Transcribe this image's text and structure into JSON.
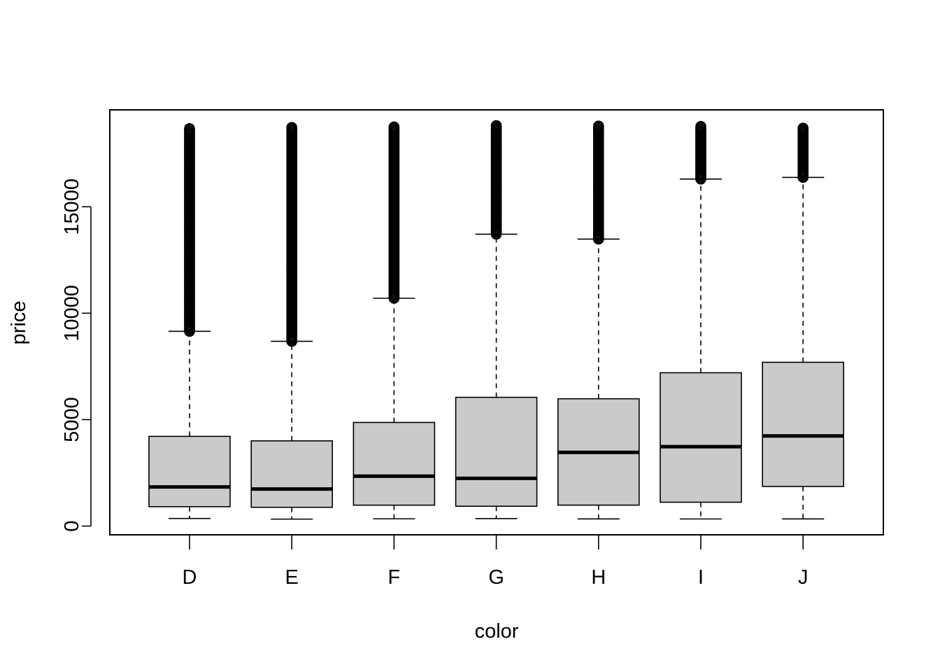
{
  "chart_data": {
    "type": "box",
    "xlabel": "color",
    "ylabel": "price",
    "categories": [
      "D",
      "E",
      "F",
      "G",
      "H",
      "I",
      "J"
    ],
    "ylim": [
      -410,
      19550
    ],
    "yticks": [
      0,
      5000,
      10000,
      15000
    ],
    "ytick_labels": [
      "0",
      "5000",
      "10000",
      "15000"
    ],
    "grid": false,
    "box_fill": "#cacaca",
    "series": [
      {
        "category": "D",
        "whisker_low": 357,
        "q1": 911,
        "median": 1838,
        "q3": 4214,
        "whisker_high": 9150,
        "outliers_min": 9150,
        "outliers_max": 18700
      },
      {
        "category": "E",
        "whisker_low": 326,
        "q1": 882,
        "median": 1739,
        "q3": 4003,
        "whisker_high": 8680,
        "outliers_min": 8680,
        "outliers_max": 18730
      },
      {
        "category": "F",
        "whisker_low": 342,
        "q1": 982,
        "median": 2345,
        "q3": 4868,
        "whisker_high": 10700,
        "outliers_min": 10700,
        "outliers_max": 18790
      },
      {
        "category": "G",
        "whisker_low": 354,
        "q1": 931,
        "median": 2242,
        "q3": 6048,
        "whisker_high": 13710,
        "outliers_min": 13710,
        "outliers_max": 18820
      },
      {
        "category": "H",
        "whisker_low": 337,
        "q1": 984,
        "median": 3460,
        "q3": 5980,
        "whisker_high": 13480,
        "outliers_min": 13480,
        "outliers_max": 18800
      },
      {
        "category": "I",
        "whisker_low": 334,
        "q1": 1120,
        "median": 3730,
        "q3": 7202,
        "whisker_high": 16300,
        "outliers_min": 16300,
        "outliers_max": 18820
      },
      {
        "category": "J",
        "whisker_low": 335,
        "q1": 1860,
        "median": 4234,
        "q3": 7695,
        "whisker_high": 16380,
        "outliers_min": 16380,
        "outliers_max": 18700
      }
    ]
  }
}
